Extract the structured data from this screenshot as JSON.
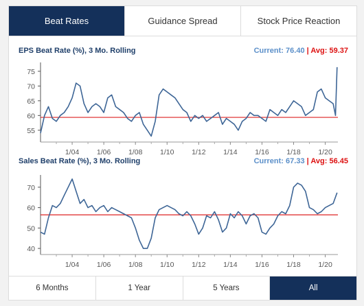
{
  "tabs": [
    {
      "label": "Beat Rates",
      "active": true
    },
    {
      "label": "Guidance Spread",
      "active": false
    },
    {
      "label": "Stock Price Reaction",
      "active": false
    }
  ],
  "charts": [
    {
      "title": "EPS Beat Rate (%), 3 Mo. Rolling",
      "current_label": "Current:",
      "current_value": "76.40",
      "separator": "|",
      "avg_label": "Avg:",
      "avg_value": "59.37"
    },
    {
      "title": "Sales Beat Rate (%), 3 Mo. Rolling",
      "current_label": "Current:",
      "current_value": "67.33",
      "separator": "|",
      "avg_label": "Avg:",
      "avg_value": "56.45"
    }
  ],
  "ranges": [
    {
      "label": "6 Months",
      "active": false
    },
    {
      "label": "1 Year",
      "active": false
    },
    {
      "label": "5 Years",
      "active": false
    },
    {
      "label": "All",
      "active": true
    }
  ],
  "colors": {
    "accent": "#14305a",
    "series": "#3d6596",
    "average_line": "#dd2222",
    "current_text": "#5b8fc9",
    "avg_text": "#dd1111"
  },
  "chart_data": [
    {
      "type": "line",
      "title": "EPS Beat Rate (%), 3 Mo. Rolling",
      "x_ticks": [
        "1/04",
        "1/06",
        "1/08",
        "1/10",
        "1/12",
        "1/14",
        "1/16",
        "1/18",
        "1/20"
      ],
      "y_ticks": [
        55,
        60,
        65,
        70,
        75
      ],
      "xlim": [
        2002.0,
        2020.8
      ],
      "ylim": [
        51,
        78
      ],
      "average": 59.37,
      "grid": false,
      "series": [
        {
          "x": [
            2002.0,
            2002.25,
            2002.5,
            2002.75,
            2003.0,
            2003.25,
            2003.5,
            2003.75,
            2004.0,
            2004.25,
            2004.5,
            2004.75,
            2005.0,
            2005.25,
            2005.5,
            2005.75,
            2006.0,
            2006.25,
            2006.5,
            2006.75,
            2007.0,
            2007.25,
            2007.5,
            2007.75,
            2008.0,
            2008.25,
            2008.5,
            2008.75,
            2009.0,
            2009.25,
            2009.5,
            2009.75,
            2010.0,
            2010.25,
            2010.5,
            2010.75,
            2011.0,
            2011.25,
            2011.5,
            2011.75,
            2012.0,
            2012.25,
            2012.5,
            2012.75,
            2013.0,
            2013.25,
            2013.5,
            2013.75,
            2014.0,
            2014.25,
            2014.5,
            2014.75,
            2015.0,
            2015.25,
            2015.5,
            2015.75,
            2016.0,
            2016.25,
            2016.5,
            2016.75,
            2017.0,
            2017.25,
            2017.5,
            2017.75,
            2018.0,
            2018.25,
            2018.5,
            2018.75,
            2019.0,
            2019.25,
            2019.5,
            2019.75,
            2020.0,
            2020.25,
            2020.5,
            2020.65,
            2020.75
          ],
          "y": [
            54,
            60,
            63,
            59,
            58,
            60,
            61,
            63,
            66,
            71,
            70,
            64,
            61,
            63,
            64,
            63,
            61,
            66,
            67,
            63,
            62,
            61,
            59,
            58,
            60,
            61,
            57,
            55,
            53,
            58,
            67,
            69,
            68,
            67,
            66,
            64,
            62,
            61,
            58,
            60,
            59,
            60,
            58,
            59,
            60,
            61,
            57,
            59,
            58,
            57,
            55,
            58,
            59,
            61,
            60,
            60,
            59,
            58,
            62,
            61,
            60,
            62,
            61,
            63,
            65,
            64,
            63,
            60,
            61,
            62,
            68,
            69,
            66,
            65,
            64,
            60,
            76.4
          ]
        }
      ]
    },
    {
      "type": "line",
      "title": "Sales Beat Rate (%), 3 Mo. Rolling",
      "x_ticks": [
        "1/04",
        "1/06",
        "1/08",
        "1/10",
        "1/12",
        "1/14",
        "1/16",
        "1/18",
        "1/20"
      ],
      "y_ticks": [
        40,
        50,
        60,
        70
      ],
      "xlim": [
        2002.0,
        2020.8
      ],
      "ylim": [
        37,
        76
      ],
      "average": 56.45,
      "grid": false,
      "series": [
        {
          "x": [
            2002.0,
            2002.25,
            2002.5,
            2002.75,
            2003.0,
            2003.25,
            2003.5,
            2003.75,
            2004.0,
            2004.25,
            2004.5,
            2004.75,
            2005.0,
            2005.25,
            2005.5,
            2005.75,
            2006.0,
            2006.25,
            2006.5,
            2006.75,
            2007.0,
            2007.25,
            2007.5,
            2007.75,
            2008.0,
            2008.25,
            2008.5,
            2008.75,
            2009.0,
            2009.25,
            2009.5,
            2009.75,
            2010.0,
            2010.25,
            2010.5,
            2010.75,
            2011.0,
            2011.25,
            2011.5,
            2011.75,
            2012.0,
            2012.25,
            2012.5,
            2012.75,
            2013.0,
            2013.25,
            2013.5,
            2013.75,
            2014.0,
            2014.25,
            2014.5,
            2014.75,
            2015.0,
            2015.25,
            2015.5,
            2015.75,
            2016.0,
            2016.25,
            2016.5,
            2016.75,
            2017.0,
            2017.25,
            2017.5,
            2017.75,
            2018.0,
            2018.25,
            2018.5,
            2018.75,
            2019.0,
            2019.25,
            2019.5,
            2019.75,
            2020.0,
            2020.25,
            2020.5,
            2020.75
          ],
          "y": [
            48,
            47,
            55,
            61,
            60,
            62,
            66,
            70,
            74,
            68,
            62,
            64,
            60,
            61,
            58,
            60,
            61,
            58,
            60,
            59,
            58,
            57,
            56,
            55,
            50,
            44,
            40,
            40,
            45,
            55,
            59,
            60,
            61,
            60,
            59,
            57,
            56,
            58,
            56,
            52,
            47,
            50,
            56,
            55,
            58,
            54,
            48,
            50,
            57,
            55,
            58,
            56,
            52,
            56,
            57,
            55,
            48,
            47,
            50,
            52,
            56,
            58,
            57,
            61,
            70,
            72,
            71,
            68,
            60,
            59,
            57,
            58,
            60,
            61,
            62,
            67.33
          ]
        }
      ]
    }
  ]
}
